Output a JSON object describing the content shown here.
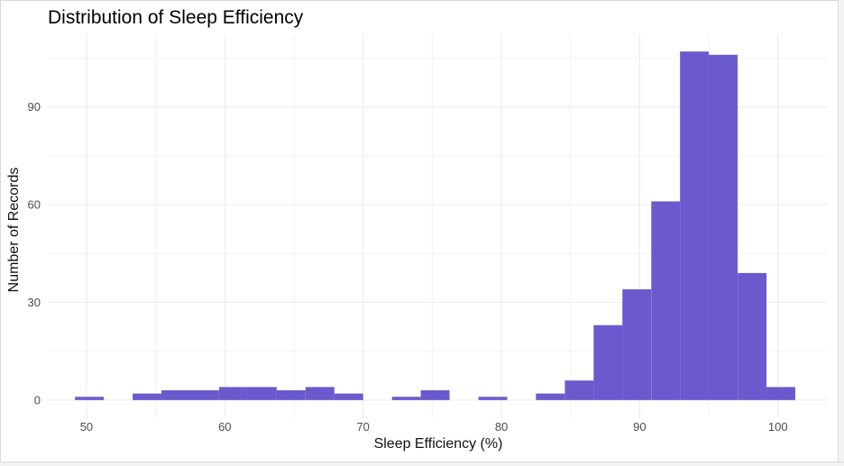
{
  "chart_data": {
    "type": "bar",
    "title": "Distribution of Sleep Efficiency",
    "xlabel": "Sleep Efficiency (%)",
    "ylabel": "Number of Records",
    "xlim": [
      47.2,
      103.6
    ],
    "ylim": [
      -5.3,
      112.3
    ],
    "x_ticks": [
      50,
      60,
      70,
      80,
      90,
      100
    ],
    "y_ticks": [
      0,
      30,
      60,
      90
    ],
    "bin_width": 2.083,
    "bin_centers": [
      50.21,
      52.29,
      54.38,
      56.46,
      58.54,
      60.63,
      62.71,
      64.79,
      66.88,
      68.96,
      71.04,
      73.13,
      75.21,
      77.29,
      79.38,
      81.46,
      83.54,
      85.63,
      87.71,
      89.79,
      91.88,
      93.96,
      96.04,
      98.13,
      100.21
    ],
    "values": [
      1,
      0,
      2,
      3,
      3,
      4,
      4,
      3,
      4,
      2,
      0,
      1,
      3,
      0,
      1,
      0,
      2,
      6,
      23,
      34,
      61,
      107,
      106,
      39,
      4
    ],
    "bar_color": "#6A5ACD",
    "grid": true,
    "legend": "none"
  }
}
